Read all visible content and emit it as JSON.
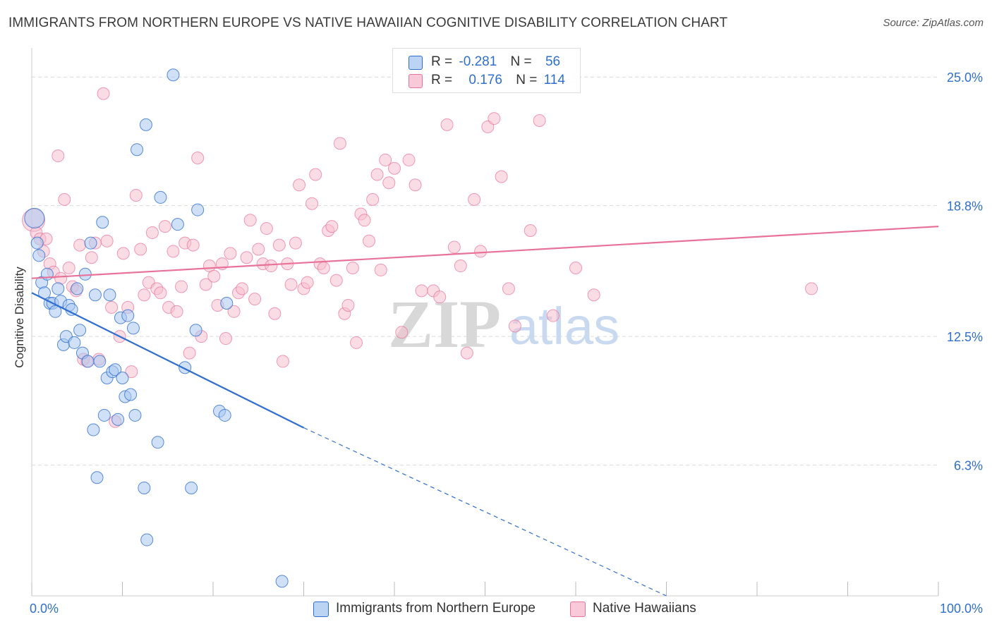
{
  "title": "IMMIGRANTS FROM NORTHERN EUROPE VS NATIVE HAWAIIAN COGNITIVE DISABILITY CORRELATION CHART",
  "source": "Source: ZipAtlas.com",
  "colors": {
    "blue": "#2f6fd0",
    "blue_fill": "#a9c8f0",
    "pink": "#e8729a",
    "pink_fill": "#f5bfd0",
    "grid": "#d9d9d9",
    "tick_label": "#2f6fd0"
  },
  "legend": {
    "blue": {
      "r_label": "R =",
      "r_value": "-0.281",
      "n_label": "N =",
      "n_value": "56"
    },
    "pink": {
      "r_label": "R =",
      "r_value": "0.176",
      "n_label": "N =",
      "n_value": "114"
    }
  },
  "watermark": {
    "zip": "ZIP",
    "atlas": "atlas"
  },
  "chart_data": {
    "type": "scatter",
    "title": "IMMIGRANTS FROM NORTHERN EUROPE VS NATIVE HAWAIIAN COGNITIVE DISABILITY CORRELATION CHART",
    "xlabel": "",
    "ylabel": "Cognitive Disability",
    "xlim": [
      0,
      100
    ],
    "ylim": [
      0,
      26.4
    ],
    "x_tick_labels": [
      "0.0%",
      "100.0%"
    ],
    "y_ticks": [
      6.3,
      12.5,
      18.8,
      25.0
    ],
    "y_tick_labels": [
      "6.3%",
      "12.5%",
      "18.8%",
      "25.0%"
    ],
    "grid": true,
    "legend_position": "top-center and bottom",
    "series": [
      {
        "name": "Immigrants from Northern Europe",
        "color": "#2f6fd0",
        "trend": {
          "x0": 0,
          "y0": 14.6,
          "x1": 30,
          "y1": 8.1,
          "dashed_to_x": 70,
          "dashed_to_y": 0
        },
        "points": [
          [
            0.3,
            18.2
          ],
          [
            0.6,
            17.0
          ],
          [
            0.8,
            16.4
          ],
          [
            1.1,
            15.1
          ],
          [
            1.4,
            14.6
          ],
          [
            1.7,
            15.5
          ],
          [
            2.0,
            14.1
          ],
          [
            2.3,
            14.1
          ],
          [
            2.6,
            13.7
          ],
          [
            2.9,
            14.8
          ],
          [
            3.2,
            14.2
          ],
          [
            3.5,
            12.1
          ],
          [
            3.8,
            12.5
          ],
          [
            4.1,
            14.0
          ],
          [
            4.4,
            13.8
          ],
          [
            4.7,
            12.2
          ],
          [
            5.0,
            14.8
          ],
          [
            5.3,
            12.8
          ],
          [
            5.6,
            11.7
          ],
          [
            5.9,
            15.5
          ],
          [
            6.2,
            11.3
          ],
          [
            6.5,
            17.0
          ],
          [
            6.8,
            8.0
          ],
          [
            7.0,
            14.5
          ],
          [
            7.2,
            5.7
          ],
          [
            7.5,
            11.3
          ],
          [
            7.8,
            18.0
          ],
          [
            8.0,
            8.7
          ],
          [
            8.3,
            10.5
          ],
          [
            8.6,
            14.5
          ],
          [
            8.9,
            10.8
          ],
          [
            9.2,
            10.9
          ],
          [
            9.5,
            8.5
          ],
          [
            9.8,
            13.4
          ],
          [
            10.0,
            10.5
          ],
          [
            10.3,
            9.6
          ],
          [
            10.6,
            13.5
          ],
          [
            10.9,
            9.7
          ],
          [
            11.2,
            12.9
          ],
          [
            11.4,
            8.7
          ],
          [
            11.6,
            21.5
          ],
          [
            12.4,
            5.2
          ],
          [
            12.6,
            22.7
          ],
          [
            12.7,
            2.7
          ],
          [
            13.9,
            7.4
          ],
          [
            14.2,
            19.2
          ],
          [
            15.6,
            25.1
          ],
          [
            16.1,
            17.9
          ],
          [
            16.9,
            11.0
          ],
          [
            17.6,
            5.2
          ],
          [
            18.1,
            12.8
          ],
          [
            18.3,
            18.6
          ],
          [
            20.7,
            8.9
          ],
          [
            21.3,
            8.7
          ],
          [
            21.5,
            14.1
          ],
          [
            27.6,
            0.7
          ]
        ]
      },
      {
        "name": "Native Hawaiians",
        "color": "#e8729a",
        "trend": {
          "x0": 0,
          "y0": 15.3,
          "x1": 100,
          "y1": 17.8
        },
        "points": [
          [
            0.2,
            18.1
          ],
          [
            0.5,
            17.5
          ],
          [
            0.9,
            17.2
          ],
          [
            1.3,
            16.6
          ],
          [
            1.6,
            17.2
          ],
          [
            2.0,
            16.0
          ],
          [
            2.4,
            15.6
          ],
          [
            2.9,
            21.2
          ],
          [
            3.2,
            15.3
          ],
          [
            3.6,
            19.1
          ],
          [
            4.1,
            15.8
          ],
          [
            4.5,
            14.9
          ],
          [
            4.9,
            14.7
          ],
          [
            5.3,
            16.9
          ],
          [
            5.7,
            11.4
          ],
          [
            6.1,
            11.3
          ],
          [
            6.6,
            16.3
          ],
          [
            7.0,
            17.0
          ],
          [
            7.4,
            11.4
          ],
          [
            7.9,
            24.2
          ],
          [
            8.3,
            17.1
          ],
          [
            8.8,
            13.9
          ],
          [
            9.2,
            8.4
          ],
          [
            9.7,
            12.5
          ],
          [
            10.1,
            16.5
          ],
          [
            10.6,
            13.9
          ],
          [
            11.0,
            10.8
          ],
          [
            11.5,
            19.3
          ],
          [
            12.0,
            16.7
          ],
          [
            12.4,
            14.5
          ],
          [
            12.9,
            15.1
          ],
          [
            13.3,
            17.5
          ],
          [
            13.8,
            14.8
          ],
          [
            14.2,
            14.6
          ],
          [
            14.7,
            17.8
          ],
          [
            15.1,
            13.9
          ],
          [
            15.6,
            16.6
          ],
          [
            16.0,
            13.7
          ],
          [
            16.5,
            14.9
          ],
          [
            16.9,
            17.0
          ],
          [
            17.4,
            11.7
          ],
          [
            17.8,
            16.9
          ],
          [
            18.3,
            21.1
          ],
          [
            18.7,
            12.5
          ],
          [
            19.2,
            15.0
          ],
          [
            19.6,
            15.9
          ],
          [
            20.1,
            15.4
          ],
          [
            20.5,
            14.0
          ],
          [
            21.0,
            16.0
          ],
          [
            21.4,
            12.4
          ],
          [
            21.9,
            16.5
          ],
          [
            22.3,
            13.7
          ],
          [
            22.8,
            14.6
          ],
          [
            23.2,
            14.8
          ],
          [
            23.7,
            16.3
          ],
          [
            24.1,
            18.1
          ],
          [
            24.6,
            14.3
          ],
          [
            25.0,
            16.7
          ],
          [
            25.5,
            16.0
          ],
          [
            25.9,
            17.7
          ],
          [
            26.4,
            15.9
          ],
          [
            26.8,
            13.6
          ],
          [
            27.3,
            16.9
          ],
          [
            27.7,
            11.3
          ],
          [
            28.2,
            16.0
          ],
          [
            28.6,
            15.0
          ],
          [
            29.1,
            17.0
          ],
          [
            29.5,
            19.8
          ],
          [
            30.0,
            14.8
          ],
          [
            30.4,
            15.1
          ],
          [
            30.9,
            18.9
          ],
          [
            31.3,
            20.3
          ],
          [
            31.8,
            16.0
          ],
          [
            32.2,
            15.8
          ],
          [
            32.7,
            17.6
          ],
          [
            33.1,
            17.8
          ],
          [
            33.6,
            15.2
          ],
          [
            34.0,
            21.8
          ],
          [
            34.5,
            13.6
          ],
          [
            34.9,
            14.0
          ],
          [
            35.4,
            15.8
          ],
          [
            35.8,
            12.2
          ],
          [
            36.3,
            18.4
          ],
          [
            36.7,
            18.1
          ],
          [
            37.2,
            17.1
          ],
          [
            37.6,
            19.1
          ],
          [
            38.1,
            20.3
          ],
          [
            38.5,
            15.7
          ],
          [
            39.0,
            21.0
          ],
          [
            39.4,
            19.9
          ],
          [
            40.0,
            20.6
          ],
          [
            40.8,
            12.7
          ],
          [
            41.6,
            21.0
          ],
          [
            42.3,
            19.8
          ],
          [
            43.0,
            14.7
          ],
          [
            44.3,
            14.7
          ],
          [
            45.0,
            14.4
          ],
          [
            45.8,
            22.7
          ],
          [
            46.6,
            16.8
          ],
          [
            47.3,
            15.9
          ],
          [
            48.0,
            11.7
          ],
          [
            48.8,
            19.1
          ],
          [
            49.5,
            16.6
          ],
          [
            50.3,
            22.6
          ],
          [
            51.0,
            23.0
          ],
          [
            51.8,
            20.2
          ],
          [
            52.6,
            14.8
          ],
          [
            53.3,
            13.0
          ],
          [
            55.0,
            17.6
          ],
          [
            56.0,
            22.9
          ],
          [
            57.5,
            13.5
          ],
          [
            60.0,
            15.8
          ],
          [
            62.0,
            14.5
          ],
          [
            86.0,
            14.8
          ]
        ]
      }
    ]
  },
  "bottom_legend": {
    "blue_label": "Immigrants from Northern Europe",
    "pink_label": "Native Hawaiians"
  }
}
